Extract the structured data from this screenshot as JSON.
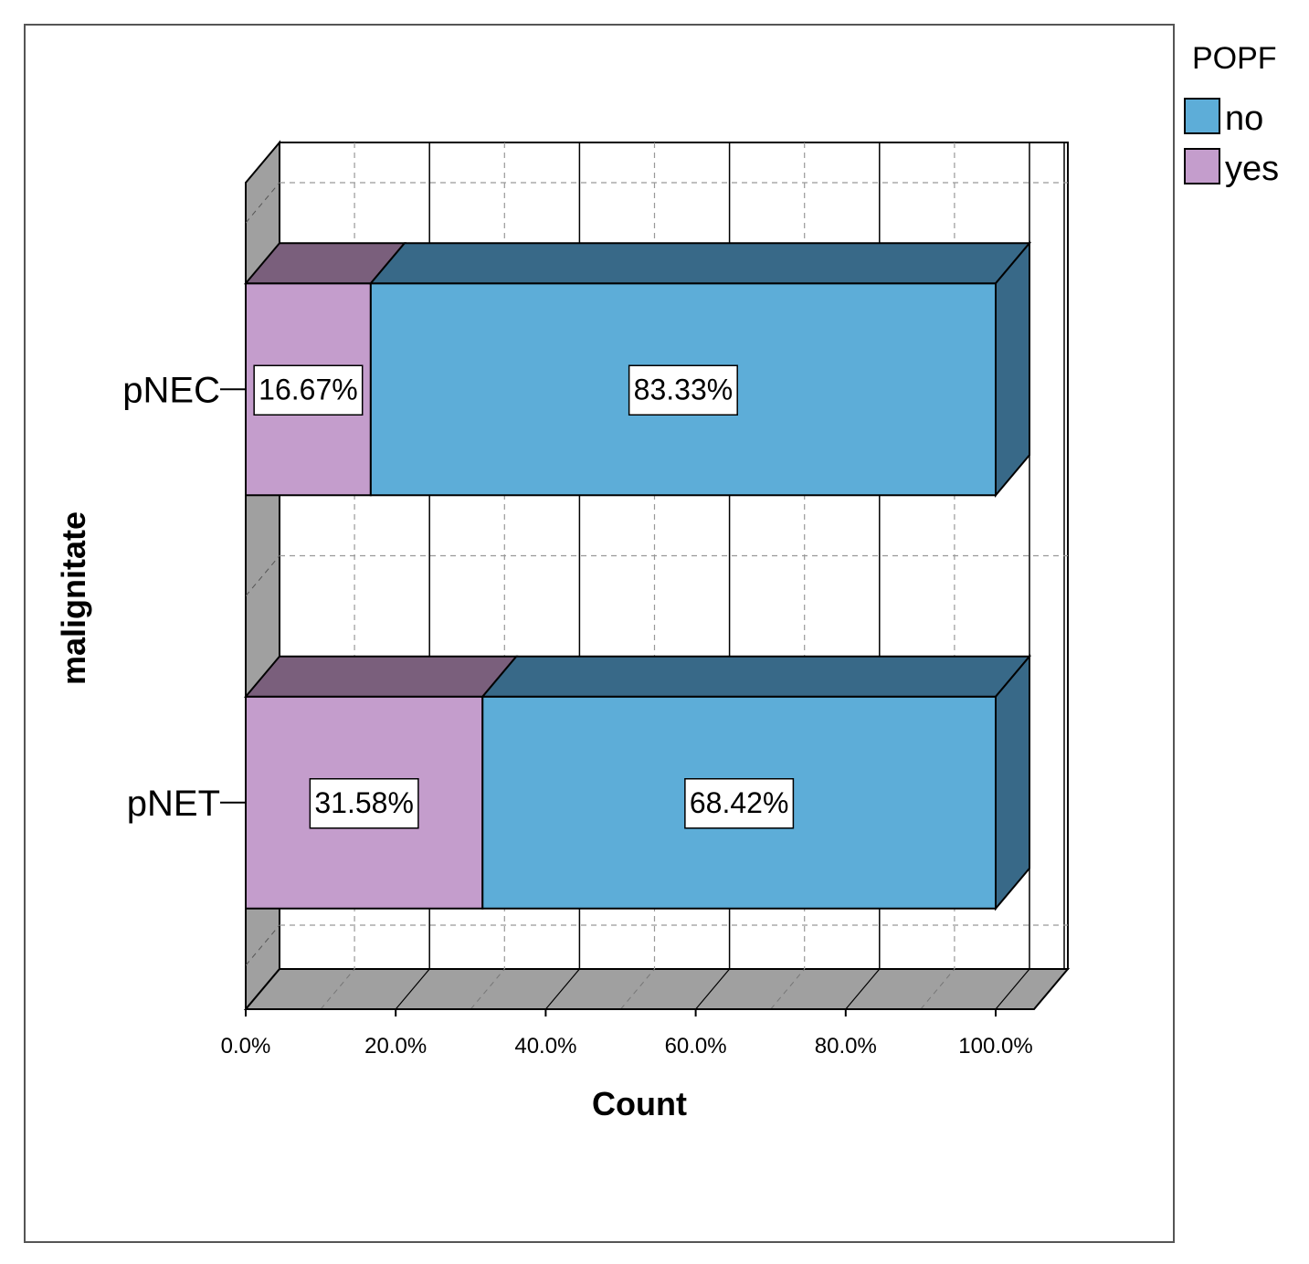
{
  "chart_data": {
    "type": "bar",
    "orientation": "horizontal",
    "stacked": true,
    "three_d": true,
    "categories": [
      "pNEC",
      "pNET"
    ],
    "series": [
      {
        "name": "yes",
        "values": [
          16.67,
          31.58
        ],
        "labels": [
          "16.67%",
          "31.58%"
        ]
      },
      {
        "name": "no",
        "values": [
          83.33,
          68.42
        ],
        "labels": [
          "83.33%",
          "68.42%"
        ]
      }
    ],
    "xlabel": "Count",
    "ylabel": "malignitate",
    "xlim": [
      0,
      100
    ],
    "xticks": [
      "0.0%",
      "20.0%",
      "40.0%",
      "60.0%",
      "80.0%",
      "100.0%"
    ],
    "grid": true,
    "legend": {
      "title": "POPF",
      "placement": "top-right",
      "entries": [
        "no",
        "yes"
      ]
    },
    "colors": {
      "no": "#5dadd8",
      "yes": "#c49dcc",
      "no_top": "#386988",
      "yes_top": "#7a5f7c",
      "wall": "#a0a0a0"
    }
  }
}
